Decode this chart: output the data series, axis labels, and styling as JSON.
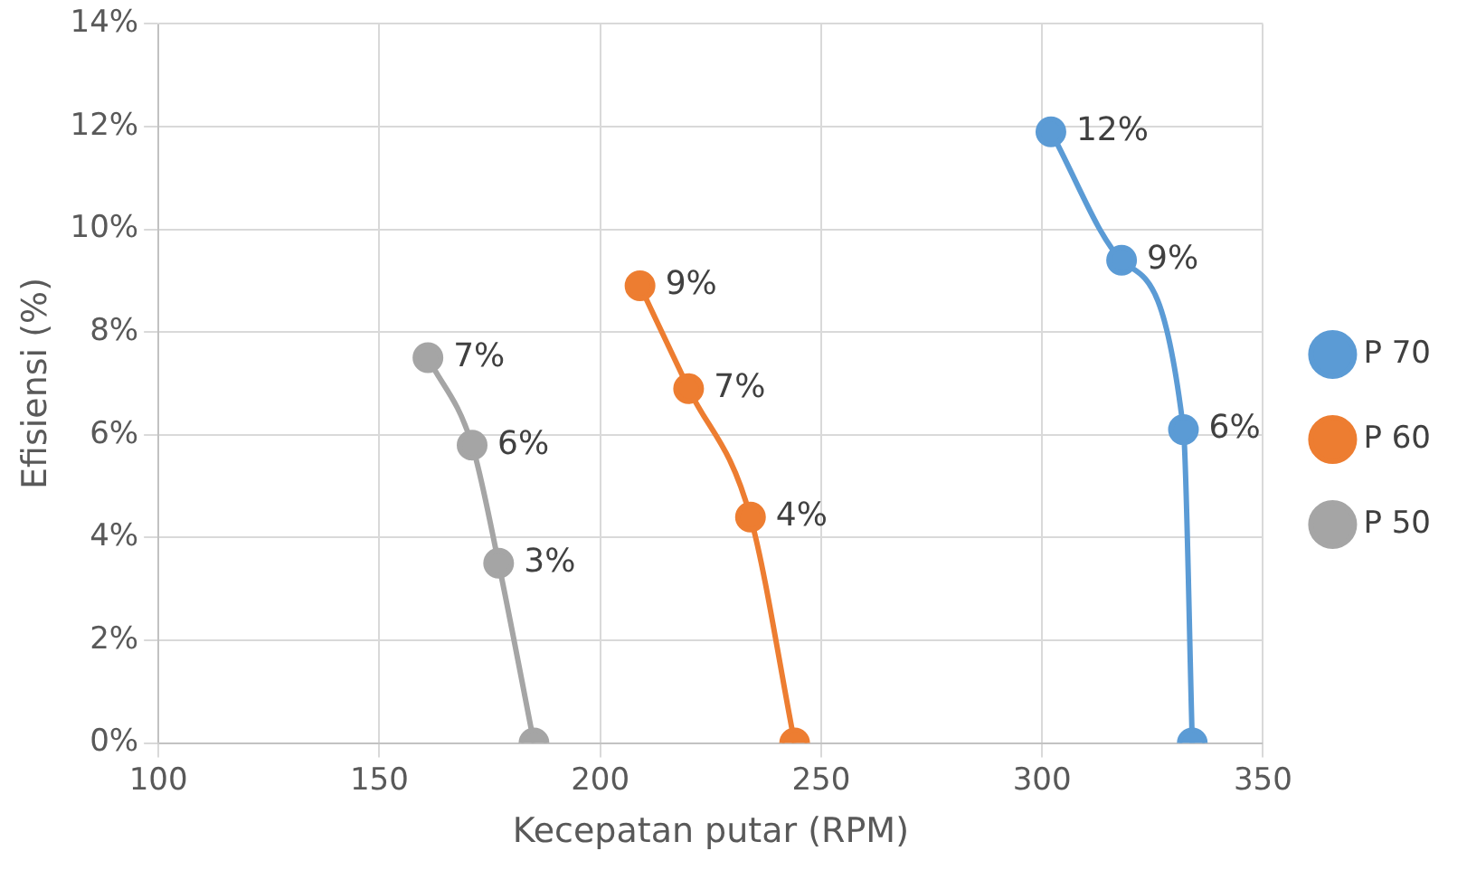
{
  "chart_data": {
    "type": "line",
    "xlabel": "Kecepatan putar (RPM)",
    "ylabel": "Efisiensi (%)",
    "xlim": [
      100,
      350
    ],
    "xticks": [
      100,
      150,
      200,
      250,
      300,
      350
    ],
    "ylim": [
      0,
      14
    ],
    "yticks": [
      {
        "value": 0,
        "label": "0%"
      },
      {
        "value": 2,
        "label": "2%"
      },
      {
        "value": 4,
        "label": "4%"
      },
      {
        "value": 6,
        "label": "6%"
      },
      {
        "value": 8,
        "label": "8%"
      },
      {
        "value": 10,
        "label": "10%"
      },
      {
        "value": 12,
        "label": "12%"
      },
      {
        "value": 14,
        "label": "14%"
      }
    ],
    "grid": true,
    "legend": "right",
    "marker": "circle",
    "line_style": "solid",
    "series": [
      {
        "name": "P 70",
        "color": "#5b9bd5",
        "x": [
          302,
          318,
          332,
          334
        ],
        "values": [
          11.9,
          9.4,
          6.1,
          0
        ],
        "value_labels": [
          "12%",
          "9%",
          "6%",
          null
        ]
      },
      {
        "name": "P 60",
        "color": "#ed7d31",
        "x": [
          209,
          220,
          234,
          244
        ],
        "values": [
          8.9,
          6.9,
          4.4,
          0
        ],
        "value_labels": [
          "9%",
          "7%",
          "4%",
          null
        ]
      },
      {
        "name": "P 50",
        "color": "#a5a5a5",
        "x": [
          161,
          171,
          177,
          185
        ],
        "values": [
          7.5,
          5.8,
          3.5,
          0
        ],
        "value_labels": [
          "7%",
          "6%",
          "3%",
          null
        ]
      }
    ]
  }
}
